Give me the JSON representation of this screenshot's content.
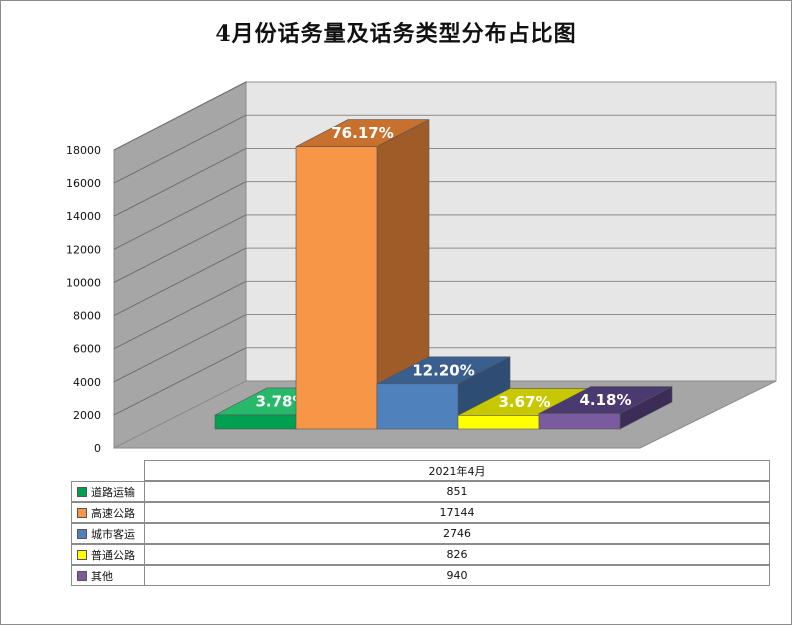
{
  "chart_data": {
    "type": "bar",
    "title": "4月份话务量及话务类型分布占比图",
    "categories": [
      "2021年4月"
    ],
    "series": [
      {
        "name": "道路运输",
        "values": [
          851
        ],
        "percent_label": "3.78%",
        "color": "#00A050",
        "side": "#00763B",
        "top": "#27B86A"
      },
      {
        "name": "高速公路",
        "values": [
          17144
        ],
        "percent_label": "76.17%",
        "color": "#F79646",
        "side": "#A05C28",
        "top": "#C8712F"
      },
      {
        "name": "城市客运",
        "values": [
          2746
        ],
        "percent_label": "12.20%",
        "color": "#4F81BD",
        "side": "#2E4D75",
        "top": "#3A5F8F"
      },
      {
        "name": "普通公路",
        "values": [
          826
        ],
        "percent_label": "3.67%",
        "color": "#FFFF00",
        "side": "#B0B000",
        "top": "#C8C800"
      },
      {
        "name": "其他",
        "values": [
          940
        ],
        "percent_label": "4.18%",
        "color": "#7A5BA0",
        "side": "#3B2D58",
        "top": "#4B3A70"
      }
    ],
    "y_ticks": [
      "0",
      "2000",
      "4000",
      "6000",
      "8000",
      "10000",
      "12000",
      "14000",
      "16000",
      "18000"
    ],
    "ylim": [
      0,
      18000
    ],
    "grid": true,
    "legend": "data-table"
  }
}
